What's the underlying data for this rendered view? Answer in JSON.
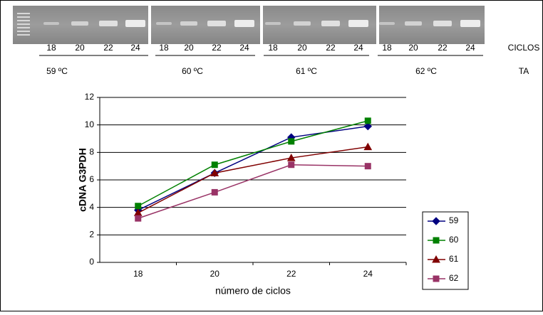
{
  "gel": {
    "lanes": [
      "18",
      "20",
      "22",
      "24",
      "18",
      "20",
      "22",
      "24",
      "18",
      "20",
      "22",
      "24",
      "18",
      "20",
      "22",
      "24"
    ],
    "cycles_label": "CICLOS",
    "temperatures": [
      "59 ºC",
      "60 ºC",
      "61 ºC",
      "62 ºC"
    ],
    "ta_label": "TA"
  },
  "chart_data": {
    "type": "line",
    "categories": [
      "18",
      "20",
      "22",
      "24"
    ],
    "x_label": "número de ciclos",
    "y_label": "cDNA G3PDH",
    "ylim": [
      0,
      12
    ],
    "yticks": [
      0,
      2,
      4,
      6,
      8,
      10,
      12
    ],
    "grid": true,
    "series": [
      {
        "name": "59",
        "color": "#000080",
        "marker": "diamond",
        "values": [
          3.8,
          6.5,
          9.1,
          9.9
        ]
      },
      {
        "name": "60",
        "color": "#008000",
        "marker": "square",
        "values": [
          4.1,
          7.1,
          8.8,
          10.3
        ]
      },
      {
        "name": "61",
        "color": "#800000",
        "marker": "triangle",
        "values": [
          3.6,
          6.5,
          7.6,
          8.4
        ]
      },
      {
        "name": "62",
        "color": "#993366",
        "marker": "square",
        "values": [
          3.2,
          5.1,
          7.1,
          7.0
        ]
      }
    ]
  }
}
